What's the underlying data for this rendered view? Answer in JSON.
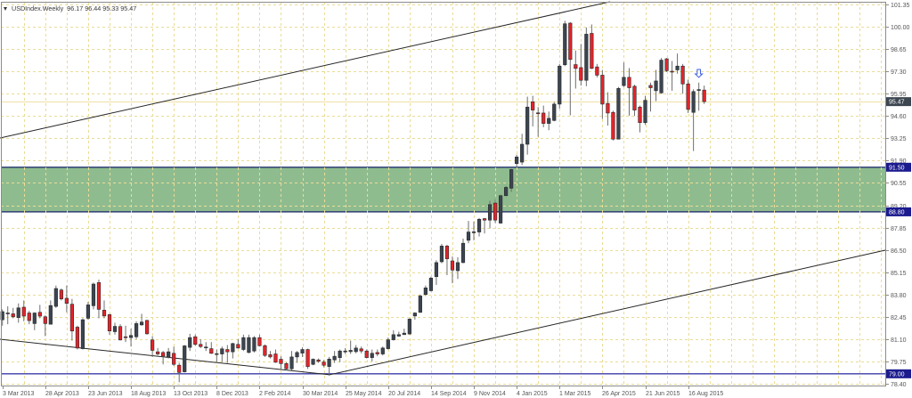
{
  "header": {
    "menu_icon": "triangle-down-icon",
    "symbol": "USDIndex.Weekly",
    "open": "96.17",
    "high": "96.44",
    "low": "95.33",
    "close": "95.47"
  },
  "colors": {
    "background": "#ffffff",
    "grid": "#eadc96",
    "frame": "#8c8c8c",
    "axis_text": "#555555",
    "bull_body": "#3b4551",
    "bear_body": "#e4232a",
    "body_outline": "#2b2b2b",
    "wick": "#6e6e6e",
    "zone_fill": "#8fbc8f",
    "zone_border": "#2e3f73",
    "level_line": "#3c3ca8",
    "current_price_line": "#efe0a4",
    "current_price_marker": "#3c4650",
    "level_marker": "#1b1b8f",
    "trendline": "#262626",
    "arrow": "#3f5fe0"
  },
  "chart_data": {
    "type": "candlestick",
    "title": "USDIndex.Weekly",
    "last_ohlc": {
      "open": 96.17,
      "high": 96.44,
      "low": 95.33,
      "close": 95.47
    },
    "ylim": [
      78.4,
      101.35
    ],
    "grid": true,
    "y_ticks": [
      "101.35",
      "100.00",
      "98.65",
      "97.30",
      "95.95",
      "94.60",
      "93.25",
      "91.90",
      "90.55",
      "89.20",
      "87.85",
      "86.50",
      "85.15",
      "83.80",
      "82.45",
      "81.10",
      "79.75",
      "78.40"
    ],
    "x_tick_every_bars": 8,
    "x_tick_labels": [
      "3 Mar 2013",
      "28 Apr 2013",
      "23 Jun 2013",
      "18 Aug 2013",
      "13 Oct 2013",
      "8 Dec 2013",
      "2 Feb 2014",
      "30 Mar 2014",
      "25 May 2014",
      "20 Jul 2014",
      "14 Sep 2014",
      "9 Nov 2014",
      "4 Jan 2015",
      "1 Mar 2015",
      "26 Apr 2015",
      "21 Jun 2015",
      "16 Aug 2015"
    ],
    "candle_format": "open,high,low,close",
    "candles": [
      [
        82.27,
        82.9,
        81.91,
        82.76
      ],
      [
        82.66,
        83.08,
        82.0,
        82.68
      ],
      [
        82.63,
        82.99,
        82.36,
        82.45
      ],
      [
        82.4,
        83.26,
        82.09,
        82.99
      ],
      [
        83.03,
        83.44,
        82.18,
        82.49
      ],
      [
        82.68,
        82.81,
        82.0,
        82.22
      ],
      [
        82.04,
        82.72,
        81.64,
        82.68
      ],
      [
        82.72,
        83.17,
        82.36,
        82.49
      ],
      [
        82.45,
        82.54,
        81.28,
        82.04
      ],
      [
        82.0,
        83.44,
        82.0,
        83.13
      ],
      [
        83.08,
        84.34,
        82.99,
        84.16
      ],
      [
        84.07,
        84.16,
        83.44,
        83.53
      ],
      [
        83.57,
        84.34,
        82.72,
        83.26
      ],
      [
        83.21,
        83.53,
        81.01,
        81.59
      ],
      [
        81.82,
        81.91,
        80.47,
        80.56
      ],
      [
        80.52,
        82.36,
        80.47,
        82.27
      ],
      [
        82.36,
        83.35,
        82.27,
        83.17
      ],
      [
        83.12,
        84.52,
        82.9,
        84.43
      ],
      [
        84.52,
        84.7,
        82.36,
        82.9
      ],
      [
        82.85,
        83.44,
        82.36,
        82.5
      ],
      [
        82.58,
        82.63,
        81.37,
        81.59
      ],
      [
        81.55,
        82.09,
        81.37,
        81.87
      ],
      [
        81.86,
        82.0,
        81.01,
        81.05
      ],
      [
        81.24,
        81.91,
        80.92,
        81.22
      ],
      [
        81.19,
        81.73,
        80.65,
        81.32
      ],
      [
        81.24,
        82.18,
        81.1,
        82.04
      ],
      [
        81.96,
        82.63,
        81.91,
        82.13
      ],
      [
        82.23,
        82.27,
        81.37,
        81.42
      ],
      [
        81.05,
        81.28,
        80.02,
        80.42
      ],
      [
        80.33,
        80.56,
        80.11,
        80.2
      ],
      [
        80.29,
        80.38,
        79.57,
        80.07
      ],
      [
        80.02,
        80.56,
        79.93,
        80.33
      ],
      [
        80.24,
        80.65,
        79.48,
        79.57
      ],
      [
        79.52,
        79.66,
        78.49,
        79.08
      ],
      [
        79.12,
        80.74,
        79.08,
        80.69
      ],
      [
        80.6,
        81.42,
        80.38,
        81.19
      ],
      [
        81.24,
        81.37,
        80.7,
        80.78
      ],
      [
        80.78,
        81.1,
        80.56,
        80.65
      ],
      [
        80.6,
        80.92,
        80.38,
        80.62
      ],
      [
        80.52,
        80.92,
        80.2,
        80.24
      ],
      [
        80.2,
        80.47,
        79.66,
        80.22
      ],
      [
        80.2,
        80.65,
        79.71,
        80.51
      ],
      [
        80.47,
        80.74,
        79.66,
        80.33
      ],
      [
        80.33,
        80.88,
        79.93,
        80.83
      ],
      [
        80.78,
        81.1,
        80.52,
        80.56
      ],
      [
        80.47,
        81.37,
        80.38,
        81.19
      ],
      [
        80.29,
        81.37,
        80.24,
        81.19
      ],
      [
        80.38,
        81.28,
        80.29,
        81.19
      ],
      [
        81.19,
        81.37,
        80.65,
        80.7
      ],
      [
        80.7,
        80.78,
        80.02,
        80.11
      ],
      [
        80.16,
        80.38,
        79.93,
        80.02
      ],
      [
        80.2,
        80.47,
        79.66,
        79.7
      ],
      [
        79.88,
        80.06,
        79.3,
        79.62
      ],
      [
        79.62,
        79.7,
        79.21,
        79.3
      ],
      [
        79.3,
        80.38,
        79.21,
        80.02
      ],
      [
        80.02,
        80.38,
        79.66,
        80.29
      ],
      [
        80.25,
        80.6,
        80.02,
        80.47
      ],
      [
        80.47,
        80.52,
        79.3,
        79.44
      ],
      [
        79.57,
        79.93,
        79.52,
        79.88
      ],
      [
        79.84,
        79.93,
        79.66,
        79.75
      ],
      [
        79.71,
        79.84,
        79.39,
        79.52
      ],
      [
        79.44,
        80.02,
        78.89,
        79.89
      ],
      [
        79.84,
        80.38,
        79.66,
        80.06
      ],
      [
        79.98,
        80.47,
        79.7,
        80.38
      ],
      [
        80.37,
        80.56,
        80.2,
        80.38
      ],
      [
        80.34,
        81.01,
        80.2,
        80.42
      ],
      [
        80.34,
        80.74,
        80.24,
        80.56
      ],
      [
        80.51,
        80.65,
        80.24,
        80.38
      ],
      [
        80.38,
        80.47,
        79.93,
        79.98
      ],
      [
        79.98,
        80.47,
        79.75,
        80.24
      ],
      [
        80.29,
        80.47,
        80.06,
        80.2
      ],
      [
        80.2,
        80.65,
        80.11,
        80.56
      ],
      [
        80.52,
        81.19,
        80.47,
        81.06
      ],
      [
        81.06,
        81.64,
        81.01,
        81.37
      ],
      [
        81.28,
        81.55,
        81.24,
        81.37
      ],
      [
        81.37,
        81.73,
        81.37,
        81.46
      ],
      [
        81.41,
        82.36,
        81.37,
        82.31
      ],
      [
        82.5,
        82.72,
        82.27,
        82.68
      ],
      [
        82.72,
        83.8,
        82.68,
        83.71
      ],
      [
        83.8,
        84.34,
        83.71,
        84.2
      ],
      [
        84.03,
        84.88,
        83.98,
        84.79
      ],
      [
        84.88,
        85.87,
        84.38,
        85.73
      ],
      [
        85.78,
        86.86,
        85.69,
        86.73
      ],
      [
        86.73,
        86.81,
        84.97,
        85.96
      ],
      [
        85.83,
        86.1,
        84.48,
        85.28
      ],
      [
        85.24,
        86.05,
        84.74,
        85.73
      ],
      [
        85.73,
        87.18,
        85.69,
        86.9
      ],
      [
        87.08,
        88.25,
        86.9,
        87.58
      ],
      [
        87.57,
        88.21,
        87.08,
        87.59
      ],
      [
        87.58,
        88.43,
        87.31,
        88.35
      ],
      [
        88.39,
        88.43,
        87.49,
        88.3
      ],
      [
        88.3,
        89.47,
        87.8,
        89.24
      ],
      [
        89.33,
        89.56,
        88.12,
        88.3
      ],
      [
        88.12,
        89.83,
        88.08,
        89.78
      ],
      [
        89.78,
        90.37,
        89.74,
        90.28
      ],
      [
        90.23,
        91.4,
        90.01,
        91.36
      ],
      [
        91.72,
        92.26,
        91.54,
        92.12
      ],
      [
        91.81,
        93.52,
        91.63,
        92.89
      ],
      [
        92.89,
        95.77,
        92.26,
        95.14
      ],
      [
        95.46,
        95.82,
        93.97,
        94.96
      ],
      [
        94.79,
        95.14,
        93.34,
        94.77
      ],
      [
        94.78,
        95.23,
        93.92,
        94.15
      ],
      [
        94.15,
        94.87,
        93.74,
        94.46
      ],
      [
        94.33,
        95.45,
        94.28,
        95.32
      ],
      [
        95.32,
        97.75,
        95.05,
        97.62
      ],
      [
        97.7,
        100.36,
        97.62,
        100.18
      ],
      [
        100.22,
        100.27,
        94.64,
        98.02
      ],
      [
        97.71,
        98.56,
        96.26,
        97.48
      ],
      [
        97.53,
        98.96,
        96.44,
        96.76
      ],
      [
        96.76,
        99.96,
        96.4,
        99.55
      ],
      [
        99.6,
        100.14,
        97.44,
        97.48
      ],
      [
        97.57,
        97.75,
        96.94,
        97.07
      ],
      [
        97.07,
        97.39,
        94.42,
        95.32
      ],
      [
        95.36,
        96.04,
        94.02,
        94.78
      ],
      [
        94.82,
        94.92,
        93.12,
        93.2
      ],
      [
        93.2,
        96.36,
        93.2,
        96.27
      ],
      [
        96.44,
        97.84,
        96.36,
        96.94
      ],
      [
        96.94,
        97.5,
        94.62,
        96.31
      ],
      [
        96.4,
        96.49,
        94.6,
        94.96
      ],
      [
        95.14,
        95.23,
        93.61,
        94.2
      ],
      [
        94.2,
        95.82,
        94.06,
        95.55
      ],
      [
        96.45,
        96.62,
        94.87,
        96.31
      ],
      [
        96.13,
        97.39,
        95.5,
        96.72
      ],
      [
        96.0,
        98.11,
        95.95,
        97.98
      ],
      [
        98.06,
        98.11,
        97.26,
        97.34
      ],
      [
        97.31,
        97.93,
        96.13,
        97.29
      ],
      [
        97.39,
        98.38,
        97.16,
        97.62
      ],
      [
        97.62,
        97.75,
        95.95,
        96.54
      ],
      [
        96.54,
        96.8,
        94.78,
        95.0
      ],
      [
        94.82,
        96.22,
        92.48,
        96.08
      ],
      [
        96.17,
        96.62,
        94.92,
        96.2
      ],
      [
        96.17,
        96.44,
        95.33,
        95.47
      ]
    ],
    "price_markers": [
      {
        "label": "95.47",
        "price": 95.47,
        "kind": "current-price"
      },
      {
        "label": "91.50",
        "price": 91.5,
        "kind": "level"
      },
      {
        "label": "88.80",
        "price": 88.8,
        "kind": "level"
      },
      {
        "label": "79.00",
        "price": 79.0,
        "kind": "level"
      }
    ],
    "current_price_line": 95.47,
    "horizontal_lines": [
      {
        "price": 79.0
      }
    ],
    "zones": [
      {
        "top": 91.5,
        "bottom": 88.8
      }
    ],
    "trendlines": [
      {
        "name": "upper-channel-trendline",
        "from": {
          "bar": -0.45,
          "price": 93.27
        },
        "to": {
          "bar": 113.4,
          "price": 101.51
        }
      },
      {
        "name": "lower-channel-trendline",
        "from": {
          "bar": 61.06,
          "price": 78.94
        },
        "to": {
          "bar": 164.8,
          "price": 86.48
        }
      },
      {
        "name": "descending-trendline",
        "from": {
          "bar": -0.45,
          "price": 81.09
        },
        "to": {
          "bar": 61.06,
          "price": 78.94
        }
      }
    ],
    "annotations": [
      {
        "type": "down-arrow",
        "bar": 130,
        "price": 97.15
      }
    ]
  }
}
